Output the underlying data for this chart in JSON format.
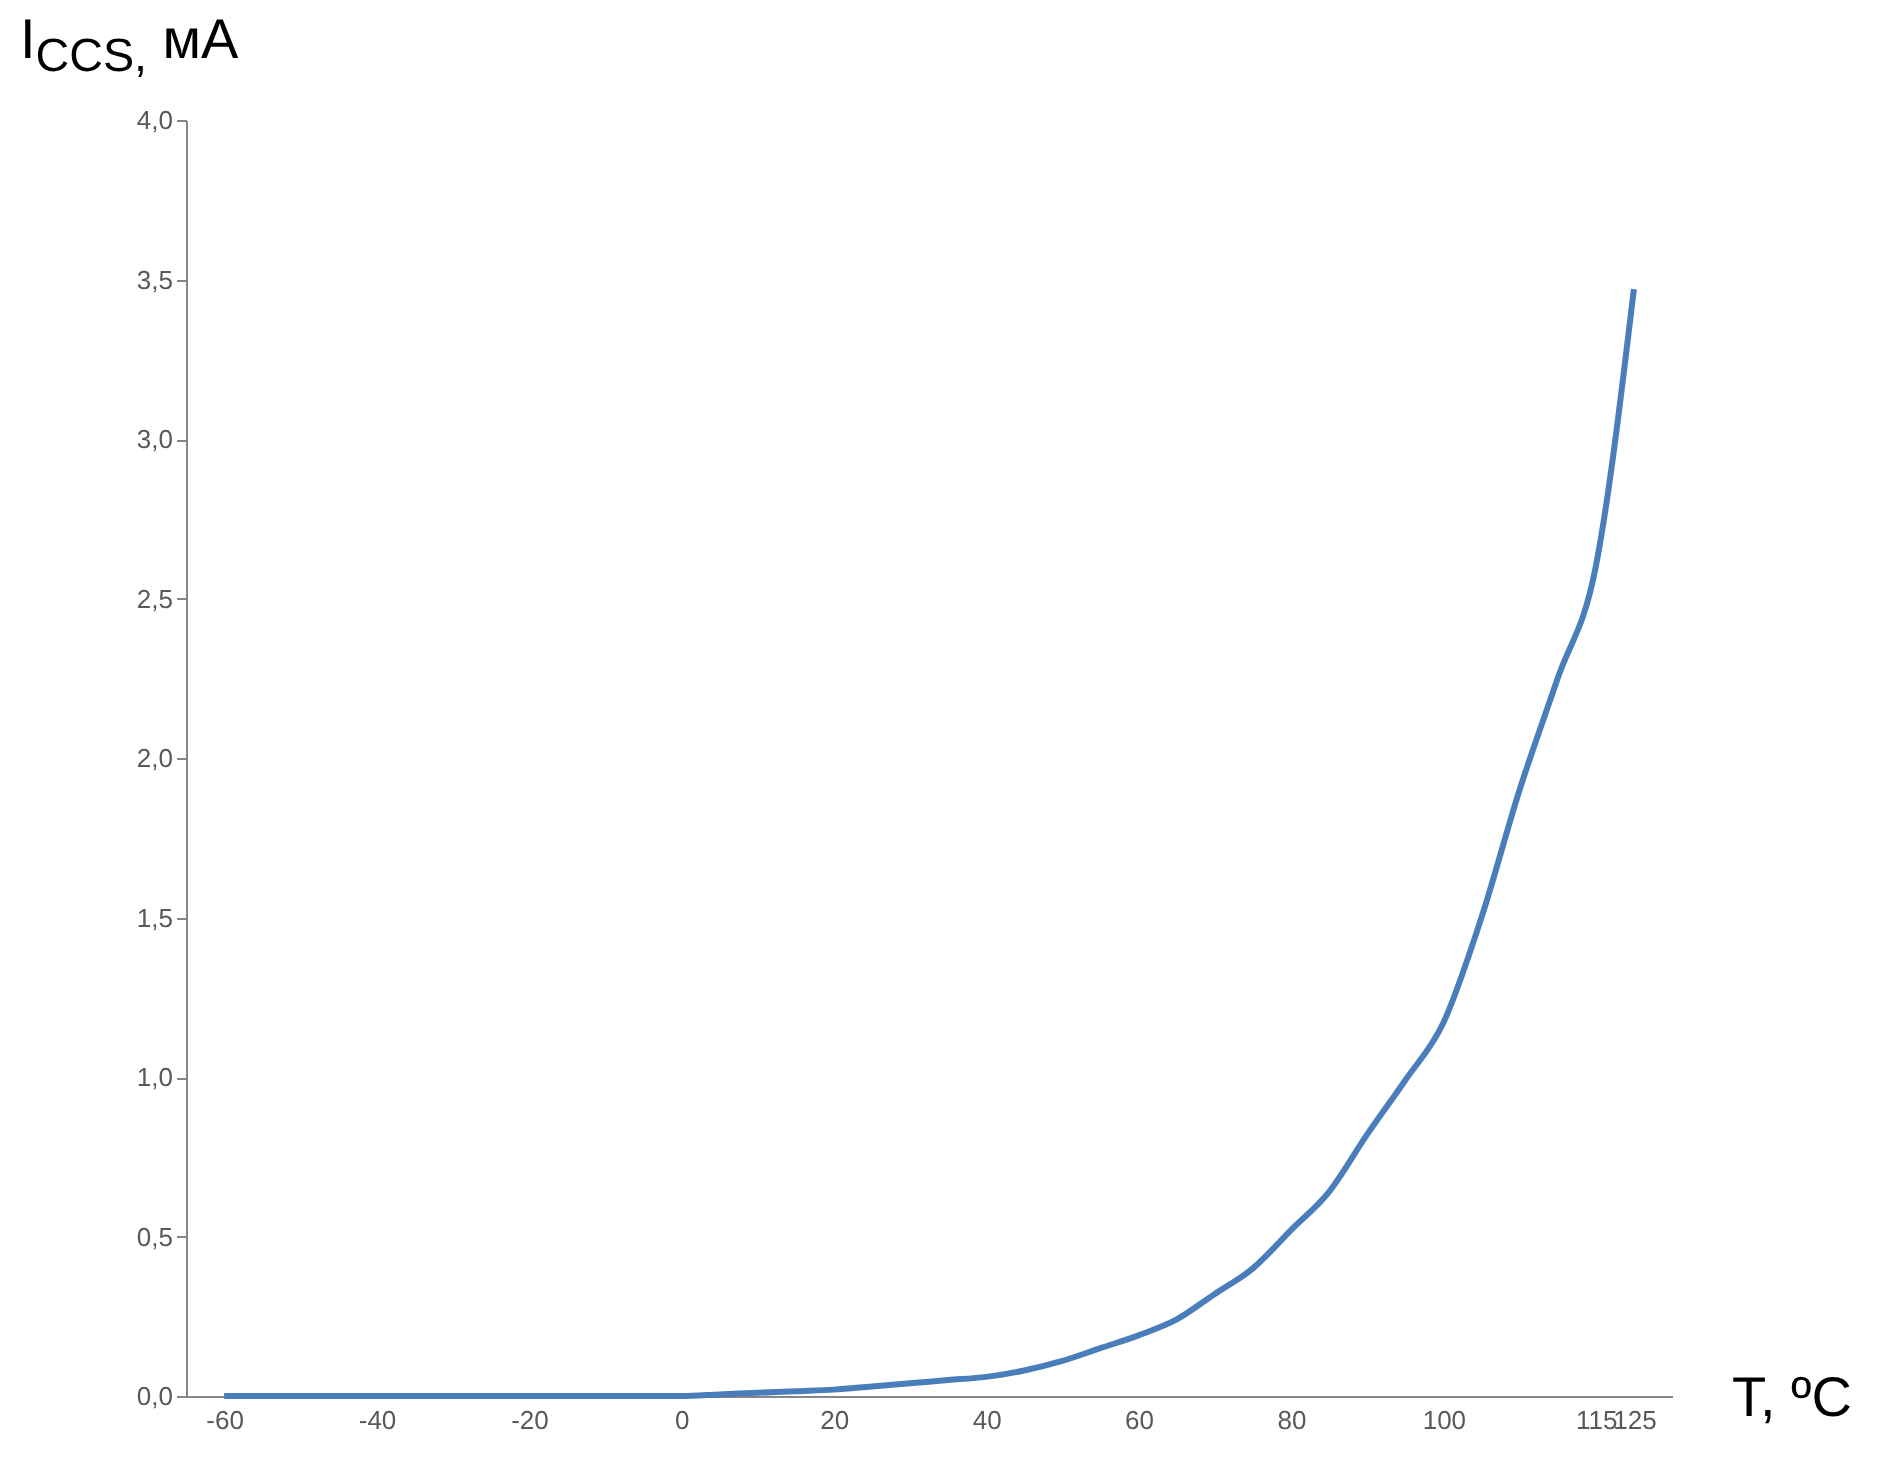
{
  "chart_data": {
    "type": "line",
    "ylabel": "I$_{CCS,}$ мА",
    "xlabel": "T, ºC",
    "categories": [
      "-60",
      null,
      null,
      null,
      "-40",
      null,
      null,
      null,
      "-20",
      null,
      null,
      null,
      "0",
      null,
      null,
      null,
      "20",
      null,
      null,
      null,
      "40",
      null,
      null,
      null,
      "60",
      null,
      null,
      null,
      "80",
      null,
      null,
      null,
      "100",
      null,
      null,
      null,
      "115",
      "125"
    ],
    "series": [
      {
        "color": "#4a7ebb",
        "values": [
          0,
          0,
          0,
          0,
          0,
          0,
          0,
          0,
          0,
          0,
          0,
          0,
          0,
          0.005,
          0.01,
          0.015,
          0.02,
          0.03,
          0.04,
          0.05,
          0.06,
          0.08,
          0.11,
          0.15,
          0.19,
          0.24,
          0.32,
          0.4,
          0.52,
          0.64,
          0.82,
          0.99,
          1.17,
          1.5,
          1.9,
          2.25,
          2.6,
          3.47
        ]
      }
    ],
    "ylim": [
      0,
      4
    ],
    "yticks": [
      {
        "value": 0,
        "label": "0,0"
      },
      {
        "value": 0.5,
        "label": "0,5"
      },
      {
        "value": 1,
        "label": "1,0"
      },
      {
        "value": 1.5,
        "label": "1,5"
      },
      {
        "value": 2,
        "label": "2,0"
      },
      {
        "value": 2.5,
        "label": "2,5"
      },
      {
        "value": 3,
        "label": "3,0"
      },
      {
        "value": 3.5,
        "label": "3,5"
      },
      {
        "value": 4,
        "label": "4,0"
      }
    ],
    "grid": false
  }
}
